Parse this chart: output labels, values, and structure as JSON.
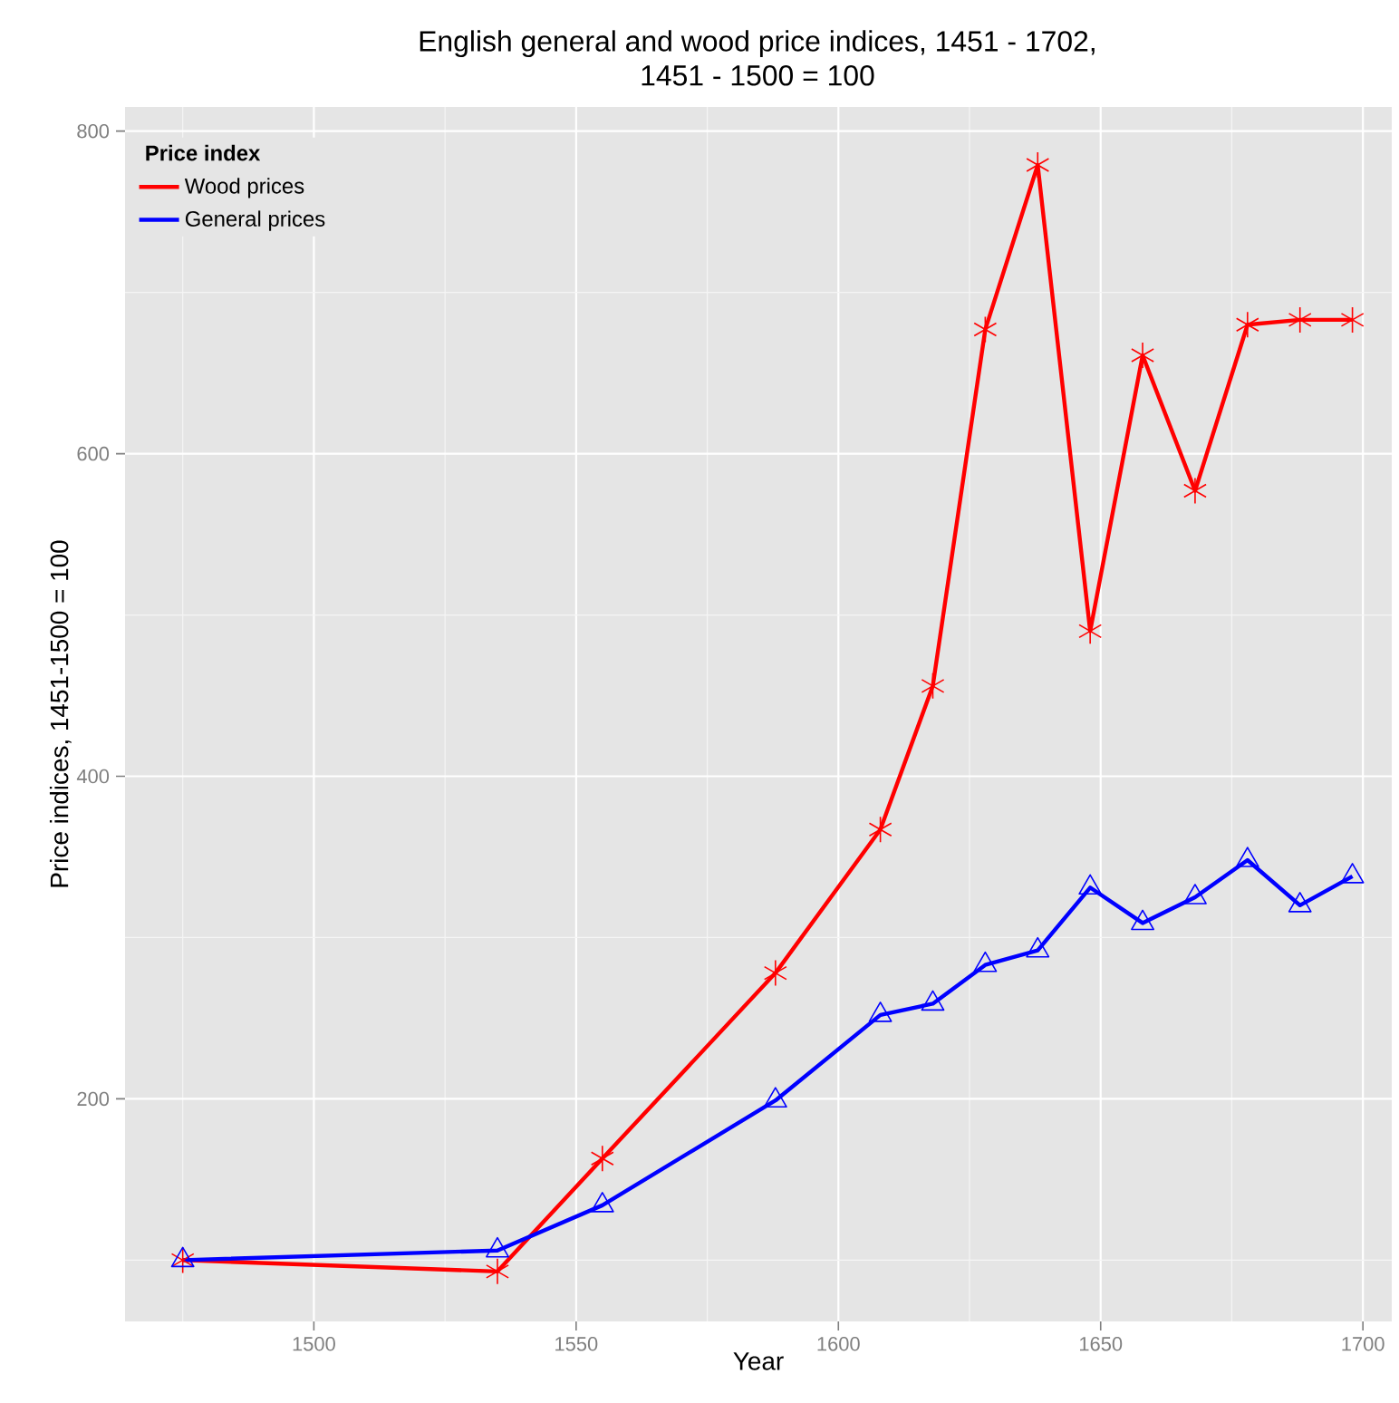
{
  "chart_data": {
    "type": "line",
    "title": "English general and wood price indices, 1451 - 1702,",
    "subtitle": "1451 - 1500 = 100",
    "xlabel": "Year",
    "ylabel": "Price indices, 1451-1500 = 100",
    "legend_title": "Price index",
    "legend": "top left",
    "grid": true,
    "xlim": [
      1464,
      1705.5
    ],
    "ylim": [
      62,
      815
    ],
    "xticks": [
      1500,
      1550,
      1600,
      1650,
      1700
    ],
    "yticks": [
      200,
      400,
      600,
      800
    ],
    "x": [
      1475,
      1535,
      1555,
      1588,
      1608,
      1618,
      1628,
      1638,
      1648,
      1658,
      1668,
      1678,
      1688,
      1698
    ],
    "series": [
      {
        "name": "Wood prices",
        "color": "#ff0000",
        "marker": "cross",
        "values": [
          100,
          93,
          163,
          278,
          367,
          456,
          677,
          779,
          490,
          661,
          577,
          680,
          683,
          683
        ]
      },
      {
        "name": "General prices",
        "color": "#0000ff",
        "marker": "triangle",
        "values": [
          100,
          106,
          134,
          199,
          252,
          259,
          283,
          292,
          331,
          309,
          325,
          348,
          320,
          338
        ]
      }
    ]
  }
}
